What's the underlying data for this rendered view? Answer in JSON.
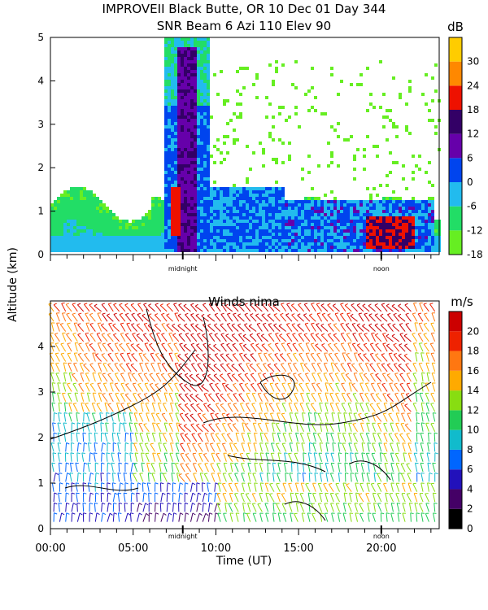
{
  "title": {
    "line1": "IMPROVEII  Black Butte, OR  10 Dec 01 Day 344",
    "line2": "SNR Beam 6 Azi 110 Elev 90"
  },
  "chart_data": [
    {
      "type": "heatmap",
      "title": "SNR Beam 6 Azi 110 Elev 90",
      "ylabel": "Altitude (km)",
      "ylim": [
        0,
        5
      ],
      "y_ticks": [
        0,
        1,
        2,
        3,
        4,
        5
      ],
      "xlim": [
        0,
        23.5
      ],
      "x_markers": [
        {
          "label": "midnight",
          "x": 8
        },
        {
          "label": "noon",
          "x": 20
        }
      ],
      "colorbar": {
        "unit": "dB",
        "min": -18,
        "max": 36,
        "ticks": [
          -18,
          -12,
          -6,
          0,
          6,
          12,
          18,
          24,
          30
        ],
        "colors": [
          "#66ee22",
          "#22dd66",
          "#22bbee",
          "#0044ee",
          "#6600aa",
          "#330066",
          "#ee1100",
          "#ff8800",
          "#ffcc00"
        ]
      }
    },
    {
      "type": "heatmap",
      "title": "Winds nima",
      "xlabel": "Time (UT)",
      "ylabel": "Altitude (km)",
      "ylim": [
        0,
        5
      ],
      "y_ticks": [
        0,
        1,
        2,
        3,
        4
      ],
      "xlim": [
        0,
        23.5
      ],
      "x_ticks": [
        "00:00",
        "05:00",
        "10:00",
        "15:00",
        "20:00"
      ],
      "x_tick_values": [
        0,
        5,
        10,
        15,
        20
      ],
      "x_markers": [
        {
          "label": "midnight",
          "x": 8
        },
        {
          "label": "noon",
          "x": 20
        }
      ],
      "colorbar": {
        "unit": "m/s",
        "min": 0,
        "max": 22,
        "ticks": [
          0,
          2,
          4,
          6,
          8,
          10,
          12,
          14,
          16,
          18,
          20
        ],
        "colors": [
          "#000000",
          "#440066",
          "#2211bb",
          "#0066ff",
          "#11bbcc",
          "#22cc55",
          "#88dd11",
          "#ffaa00",
          "#ff7711",
          "#ee2200",
          "#cc0000"
        ]
      }
    }
  ]
}
